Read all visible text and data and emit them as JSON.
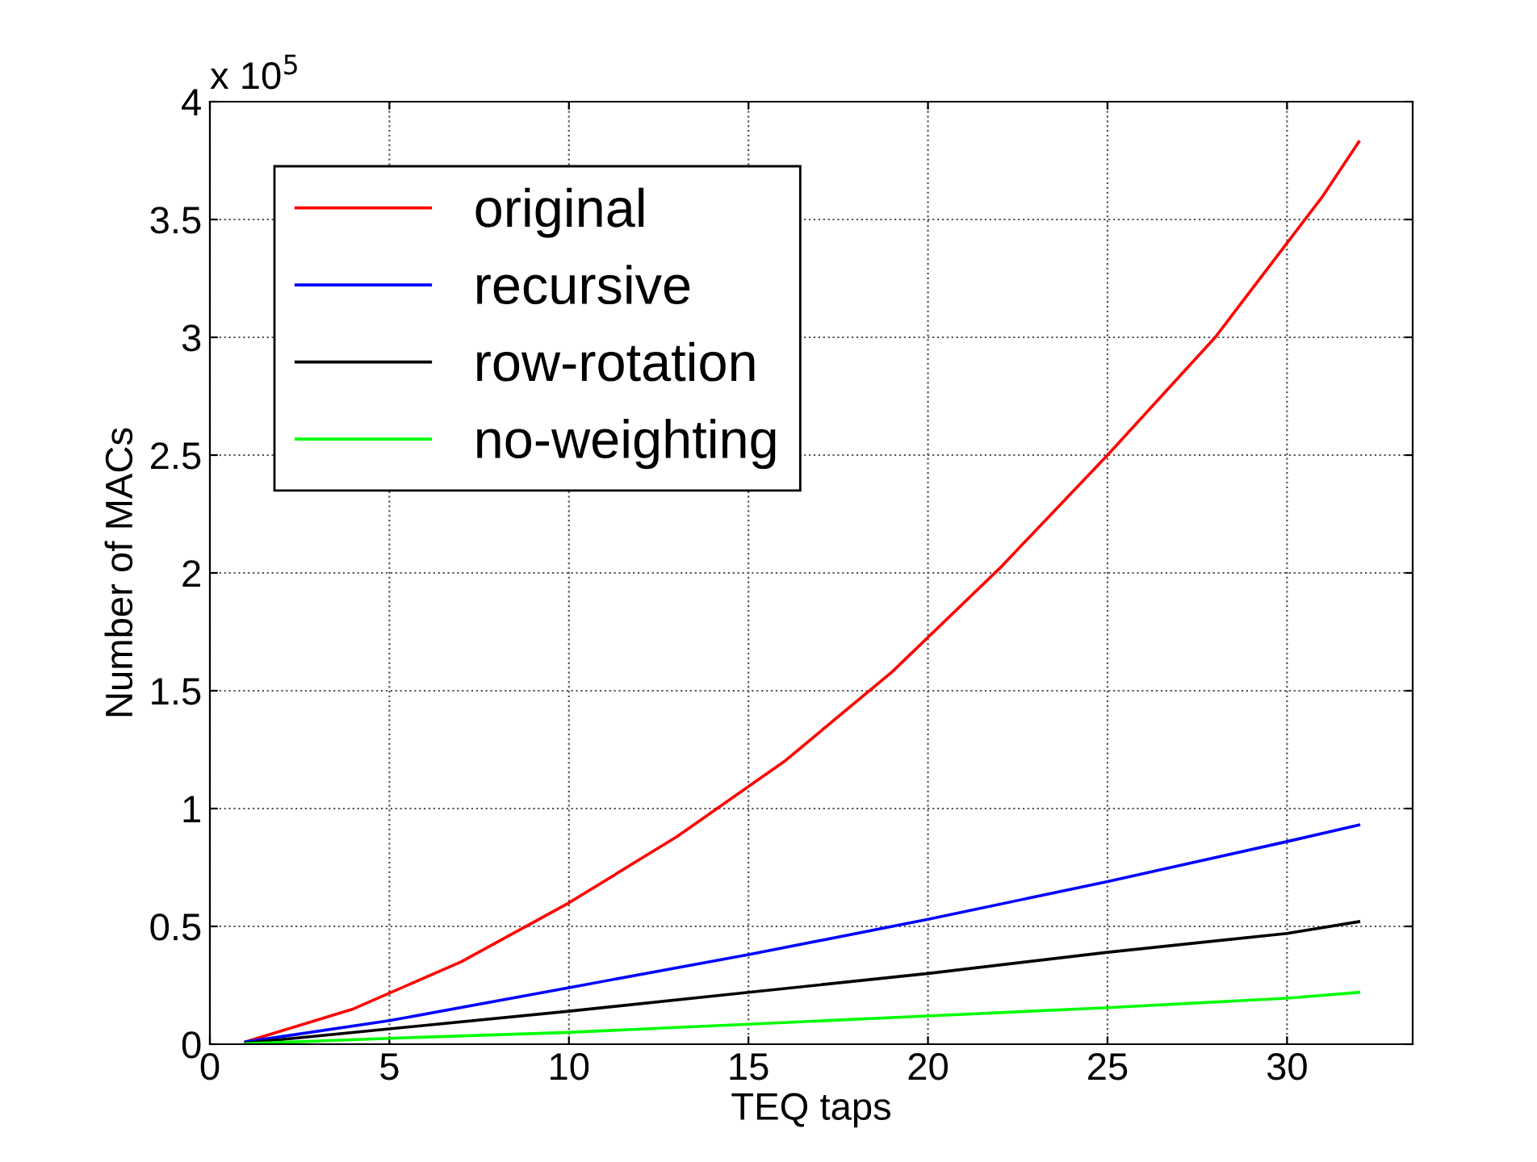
{
  "chart_data": {
    "type": "line",
    "xlabel": "TEQ taps",
    "ylabel": "Number of MACs",
    "annotations": [
      "x 10$^{5}$"
    ],
    "series": [
      {
        "name": "original",
        "color": "#ff0000",
        "x": [
          1,
          4,
          7,
          10,
          13,
          16,
          19,
          22,
          25,
          28,
          31,
          32
        ],
        "values": [
          0.01,
          0.15,
          0.35,
          0.6,
          0.88,
          1.2,
          1.58,
          2.02,
          2.5,
          3.0,
          3.6,
          3.83
        ]
      },
      {
        "name": "recursive",
        "color": "#0000ff",
        "x": [
          1,
          5,
          10,
          15,
          20,
          25,
          30,
          32
        ],
        "values": [
          0.01,
          0.1,
          0.24,
          0.38,
          0.53,
          0.69,
          0.86,
          0.93
        ]
      },
      {
        "name": "row-rotation",
        "color": "#000000",
        "x": [
          1,
          5,
          10,
          15,
          20,
          25,
          30,
          32
        ],
        "values": [
          0.005,
          0.065,
          0.14,
          0.22,
          0.3,
          0.39,
          0.47,
          0.52
        ]
      },
      {
        "name": "no-weighting",
        "color": "#00ff00",
        "x": [
          1,
          5,
          10,
          15,
          20,
          25,
          30,
          32
        ],
        "values": [
          0.002,
          0.025,
          0.05,
          0.085,
          0.12,
          0.155,
          0.195,
          0.22
        ]
      }
    ],
    "xlim": [
      0,
      33.5
    ],
    "xticks": [
      0,
      5,
      10,
      15,
      20,
      25,
      30
    ],
    "ylim": [
      0,
      4
    ],
    "yticks": [
      0,
      0.5,
      1,
      1.5,
      2,
      2.5,
      3,
      3.5,
      4
    ],
    "grid": true,
    "legend": "top left",
    "line_style": "solid"
  }
}
